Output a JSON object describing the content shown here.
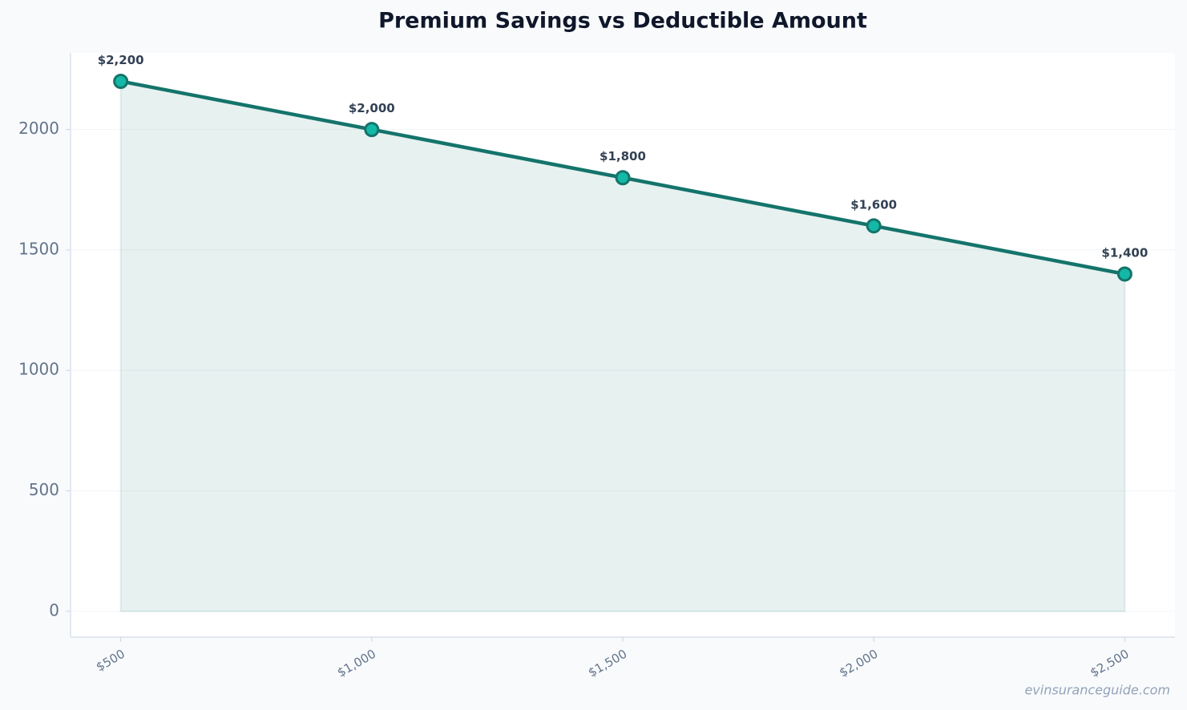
{
  "chart_data": {
    "type": "line",
    "title": "Premium Savings vs Deductible Amount",
    "categories": [
      "$500",
      "$1,000",
      "$1,500",
      "$2,000",
      "$2,500"
    ],
    "values": [
      2200,
      2000,
      1800,
      1600,
      1400
    ],
    "value_labels": [
      "$2,200",
      "$2,000",
      "$1,800",
      "$1,600",
      "$1,400"
    ],
    "color": "#14746b",
    "marker_color": "#14b8a6",
    "area": true,
    "ylim": [
      -107,
      2318
    ],
    "yticks": [
      0,
      500,
      1000,
      1500,
      2000
    ],
    "grid": true,
    "watermark": "evinsuranceguide.com"
  }
}
